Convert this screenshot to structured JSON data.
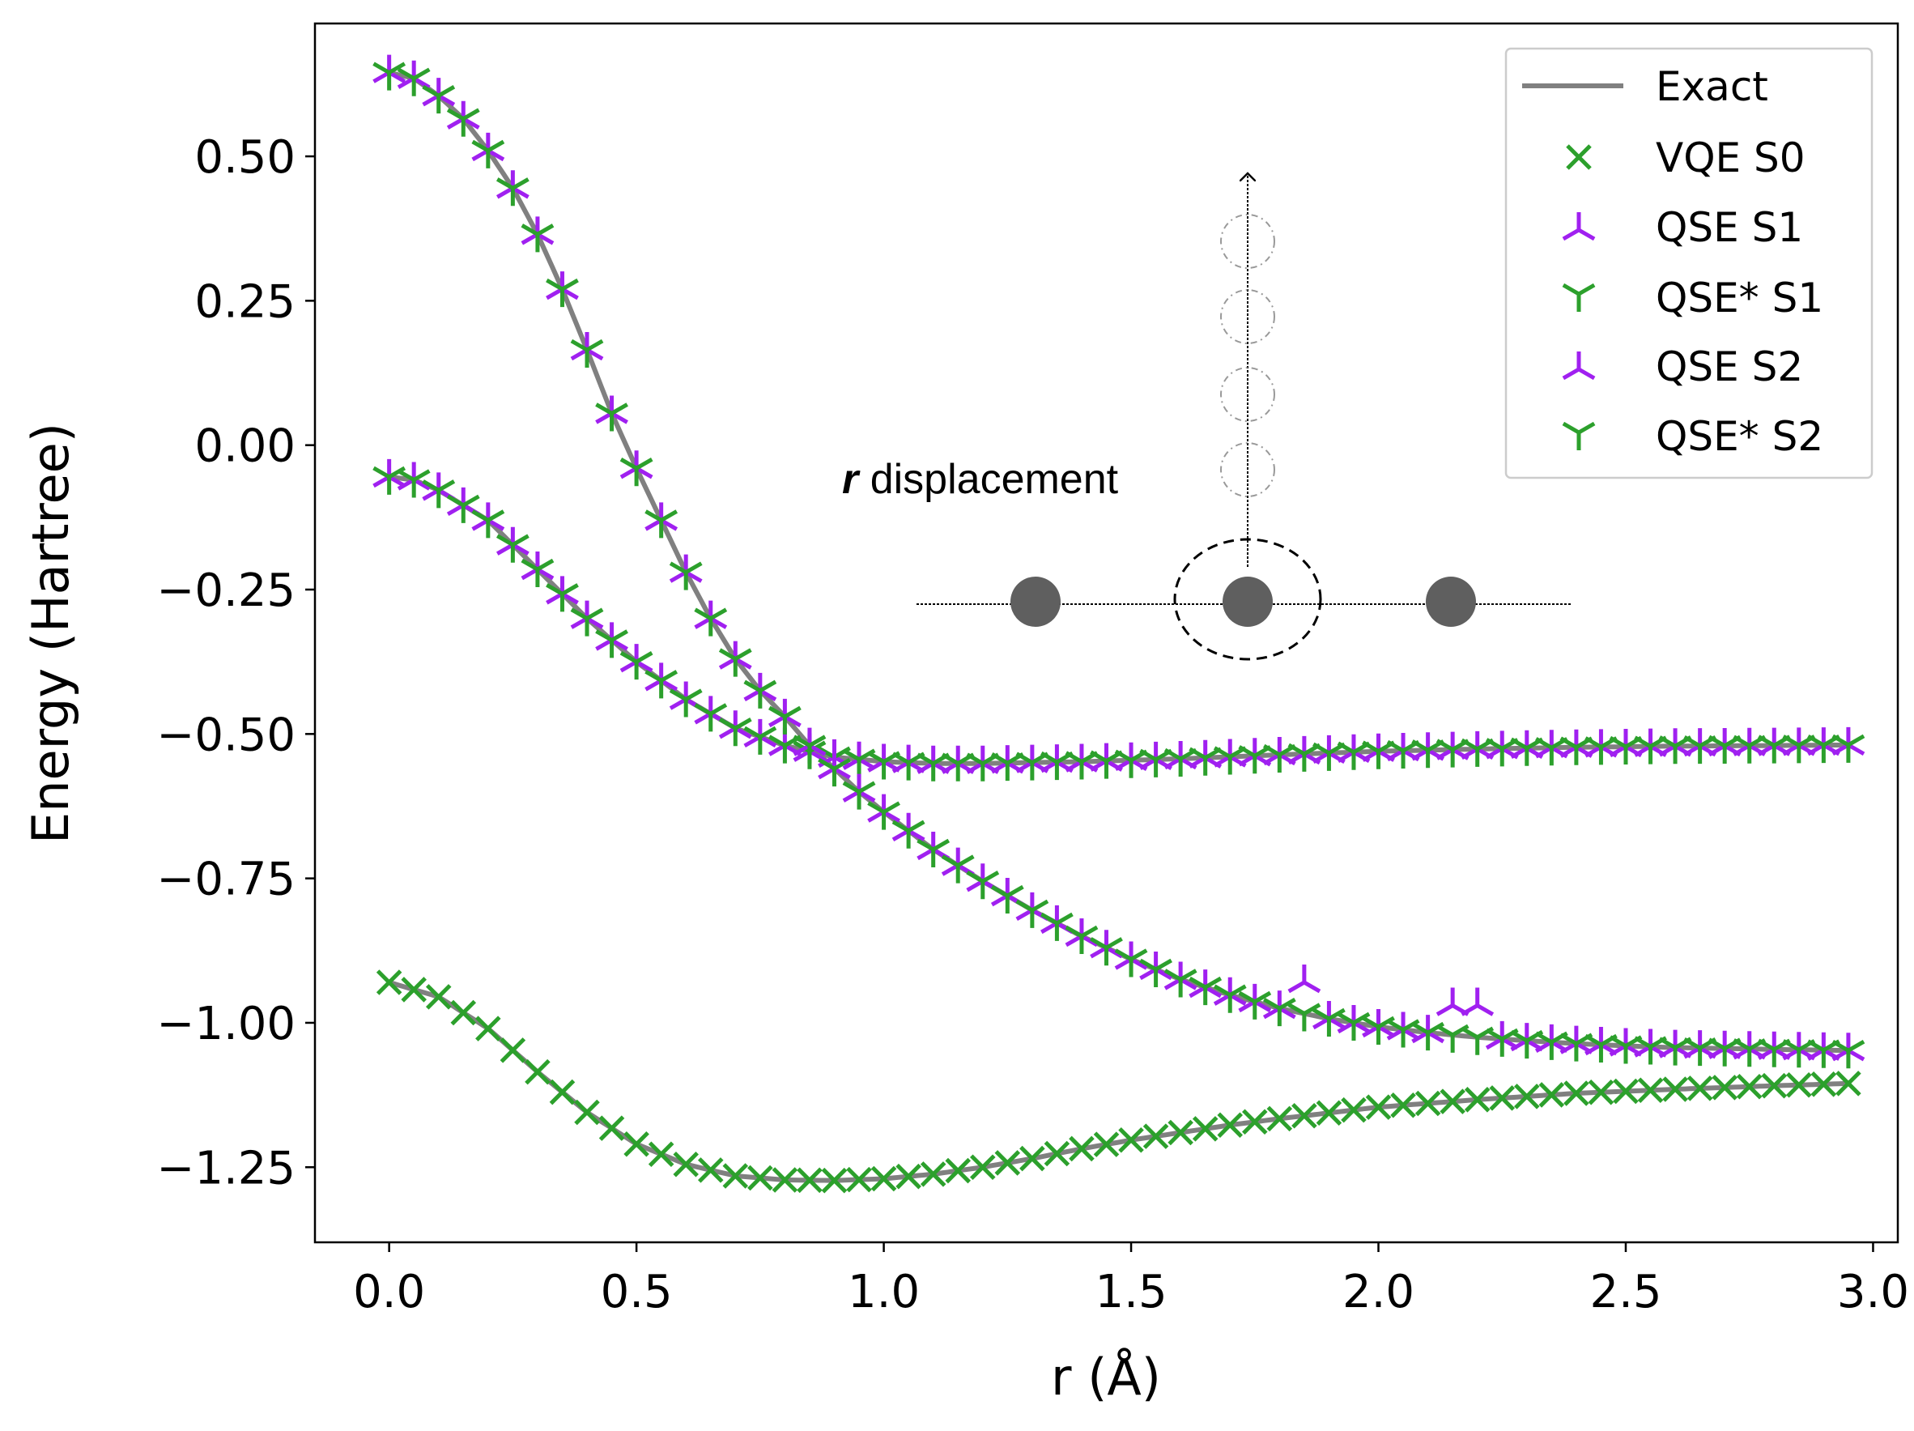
{
  "chart_data": {
    "type": "line",
    "xlabel": "r (Å)",
    "ylabel": "Energy (Hartree)",
    "xlim": [
      -0.15,
      3.05
    ],
    "ylim": [
      -1.38,
      0.73
    ],
    "x_ticks": [
      0.0,
      0.5,
      1.0,
      1.5,
      2.0,
      2.5,
      3.0
    ],
    "x_tick_labels": [
      "0.0",
      "0.5",
      "1.0",
      "1.5",
      "2.0",
      "2.5",
      "3.0"
    ],
    "y_ticks": [
      0.5,
      0.25,
      0.0,
      -0.25,
      -0.5,
      -0.75,
      -1.0,
      -1.25
    ],
    "y_tick_labels": [
      "0.50",
      "0.25",
      "0.00",
      "−0.25",
      "−0.50",
      "−0.75",
      "−1.00",
      "−1.25"
    ],
    "grid": false,
    "legend_position": "top-right",
    "colors": {
      "exact": "#808080",
      "green": "#2ca02c",
      "purple": "#a020f0"
    },
    "x_range": {
      "start": 0.0,
      "stop": 2.95,
      "step": 0.05
    },
    "series": [
      {
        "name": "Exact",
        "marker": "line",
        "color": "#808080",
        "note": "drawn along S0, S1 and S2 curves"
      },
      {
        "name": "VQE S0",
        "marker": "x",
        "color": "#2ca02c",
        "curve": [
          [
            0.0,
            -0.93
          ],
          [
            0.1,
            -0.955
          ],
          [
            0.2,
            -1.01
          ],
          [
            0.3,
            -1.085
          ],
          [
            0.4,
            -1.155
          ],
          [
            0.5,
            -1.21
          ],
          [
            0.6,
            -1.245
          ],
          [
            0.7,
            -1.265
          ],
          [
            0.8,
            -1.272
          ],
          [
            0.9,
            -1.273
          ],
          [
            1.0,
            -1.27
          ],
          [
            1.1,
            -1.262
          ],
          [
            1.2,
            -1.25
          ],
          [
            1.3,
            -1.235
          ],
          [
            1.4,
            -1.218
          ],
          [
            1.5,
            -1.203
          ],
          [
            1.6,
            -1.19
          ],
          [
            1.7,
            -1.177
          ],
          [
            1.8,
            -1.166
          ],
          [
            1.9,
            -1.156
          ],
          [
            2.0,
            -1.146
          ],
          [
            2.2,
            -1.133
          ],
          [
            2.4,
            -1.122
          ],
          [
            2.6,
            -1.115
          ],
          [
            2.8,
            -1.109
          ],
          [
            2.95,
            -1.105
          ]
        ]
      },
      {
        "name": "QSE S1",
        "marker": "tri_down",
        "color": "#a020f0",
        "curve": [
          [
            0.0,
            -0.055
          ],
          [
            0.05,
            -0.06
          ],
          [
            0.1,
            -0.078
          ],
          [
            0.2,
            -0.13
          ],
          [
            0.3,
            -0.215
          ],
          [
            0.4,
            -0.3
          ],
          [
            0.5,
            -0.375
          ],
          [
            0.6,
            -0.44
          ],
          [
            0.7,
            -0.49
          ],
          [
            0.8,
            -0.52
          ],
          [
            0.9,
            -0.54
          ],
          [
            1.0,
            -0.548
          ],
          [
            1.1,
            -0.551
          ],
          [
            1.2,
            -0.551
          ],
          [
            1.4,
            -0.548
          ],
          [
            1.6,
            -0.543
          ],
          [
            1.8,
            -0.536
          ],
          [
            2.0,
            -0.53
          ],
          [
            2.2,
            -0.526
          ],
          [
            2.4,
            -0.523
          ],
          [
            2.6,
            -0.521
          ],
          [
            2.8,
            -0.52
          ],
          [
            2.95,
            -0.519
          ]
        ]
      },
      {
        "name": "QSE* S1",
        "marker": "tri_up",
        "color": "#2ca02c",
        "same_curve_as": "QSE S1"
      },
      {
        "name": "QSE S2",
        "marker": "tri_down",
        "color": "#a020f0",
        "curve": [
          [
            0.0,
            0.645
          ],
          [
            0.05,
            0.635
          ],
          [
            0.1,
            0.605
          ],
          [
            0.15,
            0.565
          ],
          [
            0.2,
            0.51
          ],
          [
            0.25,
            0.445
          ],
          [
            0.3,
            0.365
          ],
          [
            0.35,
            0.27
          ],
          [
            0.4,
            0.165
          ],
          [
            0.45,
            0.055
          ],
          [
            0.5,
            -0.04
          ],
          [
            0.55,
            -0.13
          ],
          [
            0.6,
            -0.22
          ],
          [
            0.65,
            -0.3
          ],
          [
            0.7,
            -0.37
          ],
          [
            0.75,
            -0.425
          ],
          [
            0.8,
            -0.47
          ],
          [
            0.85,
            -0.52
          ],
          [
            0.9,
            -0.56
          ],
          [
            0.95,
            -0.6
          ],
          [
            1.0,
            -0.635
          ],
          [
            1.1,
            -0.7
          ],
          [
            1.2,
            -0.755
          ],
          [
            1.3,
            -0.805
          ],
          [
            1.4,
            -0.85
          ],
          [
            1.5,
            -0.89
          ],
          [
            1.6,
            -0.925
          ],
          [
            1.7,
            -0.952
          ],
          [
            1.8,
            -0.975
          ],
          [
            1.9,
            -0.993
          ],
          [
            2.0,
            -1.007
          ],
          [
            2.1,
            -1.017
          ],
          [
            2.2,
            -1.025
          ],
          [
            2.3,
            -1.031
          ],
          [
            2.4,
            -1.036
          ],
          [
            2.5,
            -1.04
          ],
          [
            2.6,
            -1.043
          ],
          [
            2.8,
            -1.046
          ],
          [
            2.95,
            -1.048
          ]
        ],
        "outliers": [
          [
            1.85,
            -0.93
          ],
          [
            2.15,
            -0.97
          ],
          [
            2.2,
            -0.97
          ]
        ]
      },
      {
        "name": "QSE* S2",
        "marker": "tri_up",
        "color": "#2ca02c",
        "same_curve_as": "QSE S2"
      }
    ],
    "inset": {
      "label_italic": "r",
      "label_rest": " displacement",
      "atom_positions_r": [
        1.33,
        1.77,
        2.19
      ]
    }
  }
}
